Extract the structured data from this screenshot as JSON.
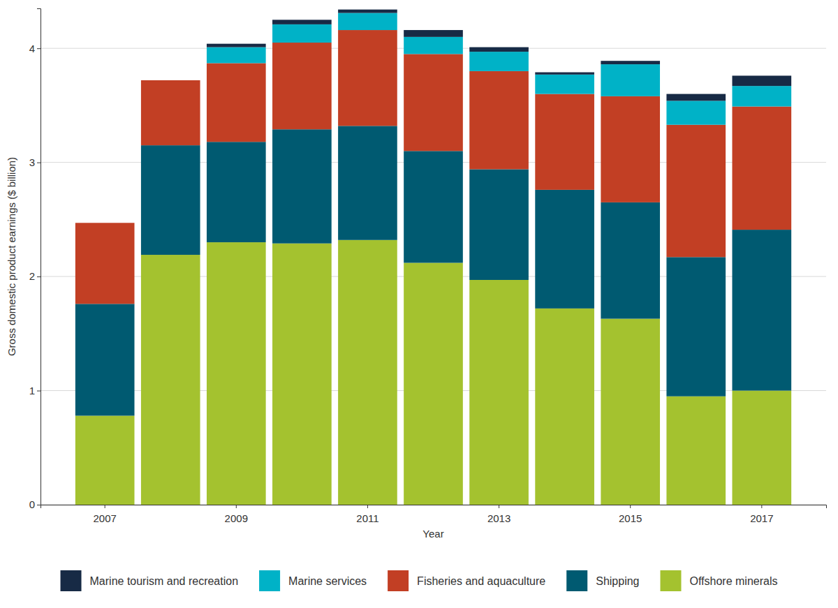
{
  "chart_data": {
    "type": "bar",
    "stacked": true,
    "grid": true,
    "legend": "bottom",
    "x_label": "Year",
    "y_label": "Gross domestic product earnings ($ billion)",
    "categories": [
      "2007",
      null,
      "2009",
      null,
      "2011",
      null,
      "2013",
      null,
      "2015",
      null,
      "2017"
    ],
    "ylim": [
      0,
      4.35
    ],
    "yticks": [
      0,
      1,
      2,
      3,
      4
    ],
    "series": [
      {
        "name": "Offshore minerals",
        "color": "#a4c22f",
        "values": [
          0.78,
          2.19,
          2.3,
          2.29,
          2.32,
          2.12,
          1.97,
          1.72,
          1.63,
          0.95,
          1.0
        ]
      },
      {
        "name": "Shipping",
        "color": "#005a71",
        "values": [
          0.98,
          0.96,
          0.88,
          1.0,
          1.0,
          0.98,
          0.97,
          1.04,
          1.02,
          1.22,
          1.41
        ]
      },
      {
        "name": "Fisheries and aquaculture",
        "color": "#c23f24",
        "values": [
          0.71,
          0.57,
          0.69,
          0.76,
          0.84,
          0.85,
          0.86,
          0.84,
          0.93,
          1.16,
          1.08
        ]
      },
      {
        "name": "Marine services",
        "color": "#00b2c7",
        "values": [
          0,
          0,
          0.14,
          0.16,
          0.15,
          0.15,
          0.17,
          0.17,
          0.28,
          0.21,
          0.18
        ]
      },
      {
        "name": "Marine tourism and recreation",
        "color": "#172a45",
        "values": [
          0,
          0,
          0.03,
          0.04,
          0.03,
          0.06,
          0.04,
          0.02,
          0.03,
          0.06,
          0.09
        ]
      }
    ]
  }
}
